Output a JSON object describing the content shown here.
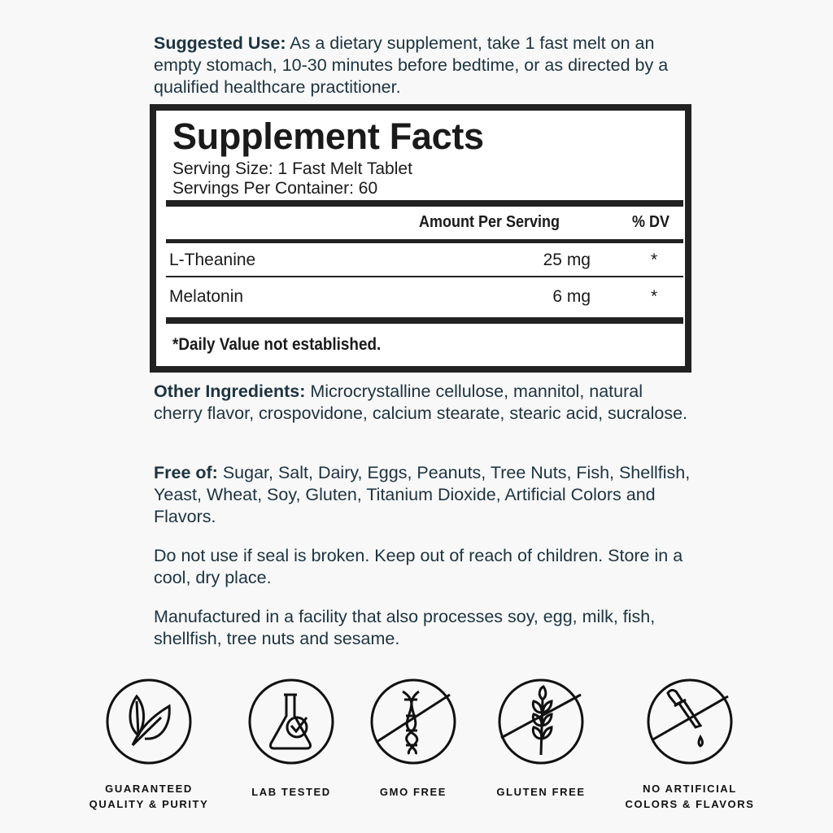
{
  "suggested_use": {
    "label": "Suggested Use:",
    "text": " As a dietary supplement, take 1 fast melt on an empty stomach, 10-30 minutes before bedtime, or as directed by a qualified healthcare practitioner."
  },
  "facts": {
    "title": "Supplement Facts",
    "serving_size": "Serving Size: 1 Fast Melt Tablet",
    "servings_per_container": "Servings Per Container: 60",
    "col_amount": "Amount Per Serving",
    "col_dv": "% DV",
    "rows": [
      {
        "name": "L-Theanine",
        "amount": "25 mg",
        "dv": "*"
      },
      {
        "name": "Melatonin",
        "amount": "6 mg",
        "dv": "*"
      }
    ],
    "footnote": "*Daily Value not established."
  },
  "other_ingredients": {
    "label": "Other Ingredients:",
    "text": " Microcrystalline cellulose, mannitol, natural cherry flavor, crospovidone, calcium stearate, stearic acid, sucralose."
  },
  "free_of": {
    "label": "Free of:",
    "text": " Sugar, Salt, Dairy, Eggs, Peanuts, Tree Nuts, Fish, Shellfish, Yeast, Wheat, Soy, Gluten, Titanium Dioxide, Artificial Colors and Flavors."
  },
  "warning": "Do not use if seal is broken. Keep out of reach of children. Store in a cool, dry place.",
  "facility": "Manufactured in a facility that also processes soy, egg, milk, fish, shellfish, tree nuts and sesame.",
  "badges": [
    {
      "icon": "leaf-icon",
      "line1": "GUARANTEED",
      "line2": "QUALITY & PURITY"
    },
    {
      "icon": "flask-check-icon",
      "line1": "LAB TESTED",
      "line2": ""
    },
    {
      "icon": "dna-crossed-icon",
      "line1": "GMO FREE",
      "line2": ""
    },
    {
      "icon": "wheat-crossed-icon",
      "line1": "GLUTEN FREE",
      "line2": ""
    },
    {
      "icon": "dropper-crossed-icon",
      "line1": "NO ARTIFICIAL",
      "line2": "COLORS & FLAVORS"
    }
  ],
  "colors": {
    "text": "#1d3340",
    "background": "#f8f8f8",
    "border": "#222222"
  }
}
